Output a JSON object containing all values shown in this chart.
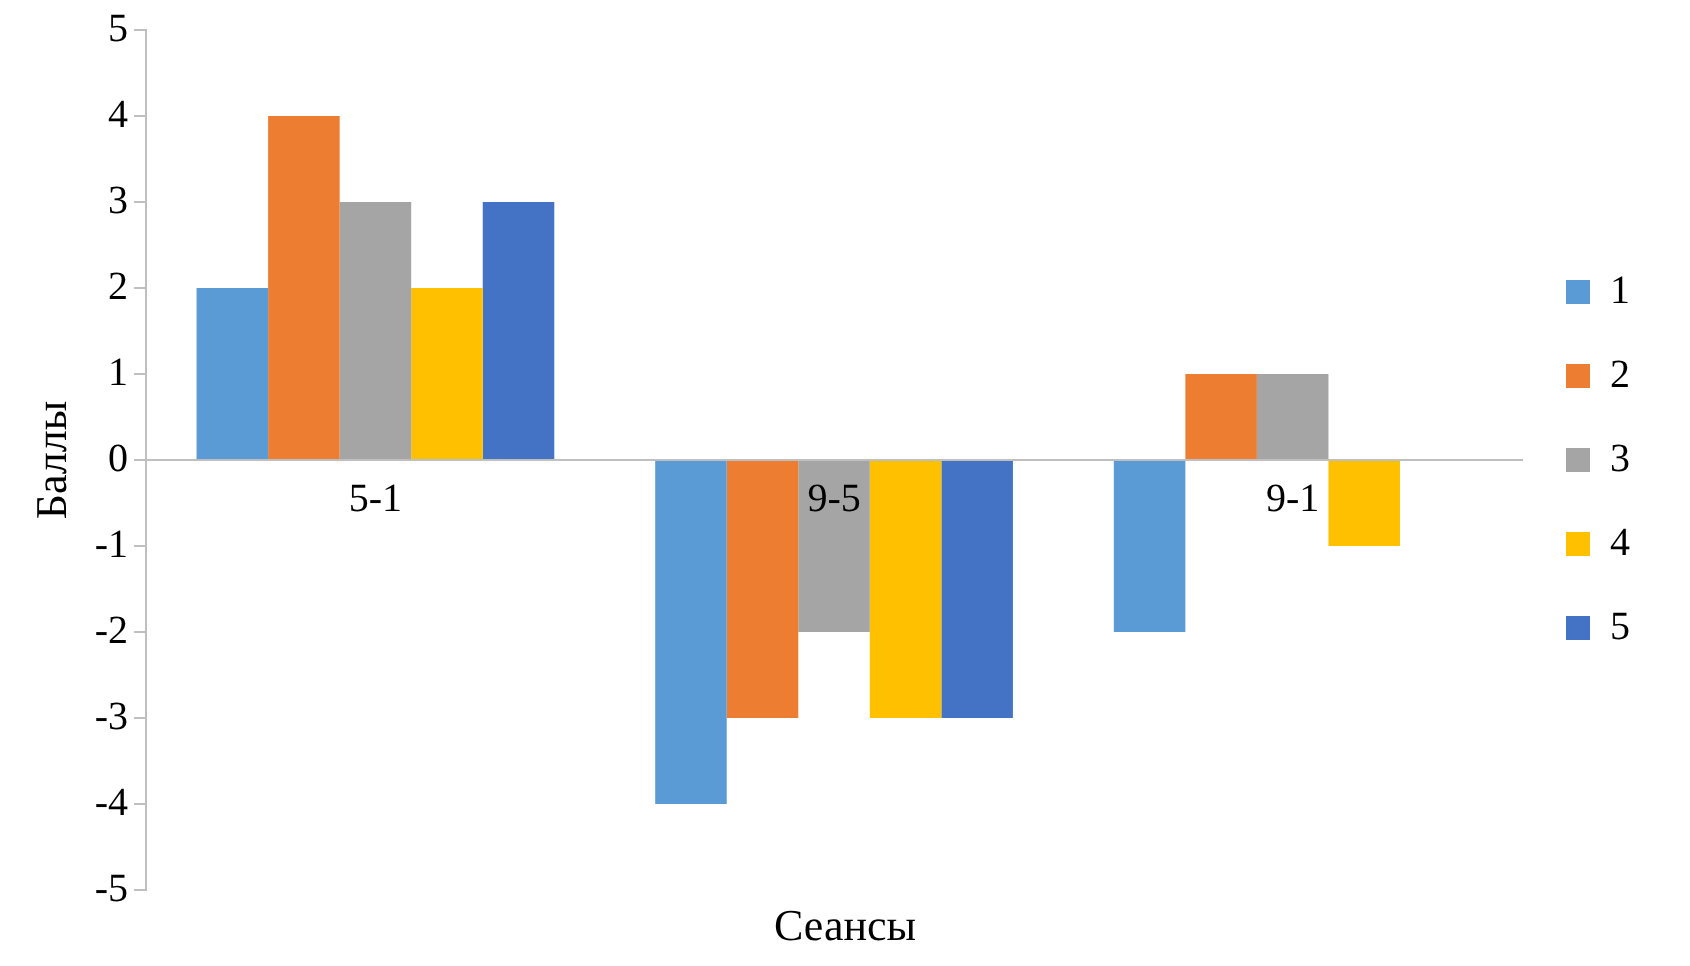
{
  "chart_data": {
    "type": "bar",
    "xlabel": "Сеансы",
    "ylabel": "Баллы",
    "categories": [
      "5-1",
      "9-5",
      "9-1"
    ],
    "series": [
      {
        "name": "1",
        "color": "#5b9bd5",
        "values": [
          2,
          -4,
          -2
        ]
      },
      {
        "name": "2",
        "color": "#ed7d31",
        "values": [
          4,
          -3,
          1
        ]
      },
      {
        "name": "3",
        "color": "#a5a5a5",
        "values": [
          3,
          -2,
          1
        ]
      },
      {
        "name": "4",
        "color": "#ffc000",
        "values": [
          2,
          -3,
          -1
        ]
      },
      {
        "name": "5",
        "color": "#4472c4",
        "values": [
          3,
          -3,
          0
        ]
      }
    ],
    "ylim": [
      -5,
      5
    ],
    "yticks": [
      -5,
      -4,
      -3,
      -2,
      -1,
      0,
      1,
      2,
      3,
      4,
      5
    ],
    "grid": false,
    "legend": "right"
  }
}
